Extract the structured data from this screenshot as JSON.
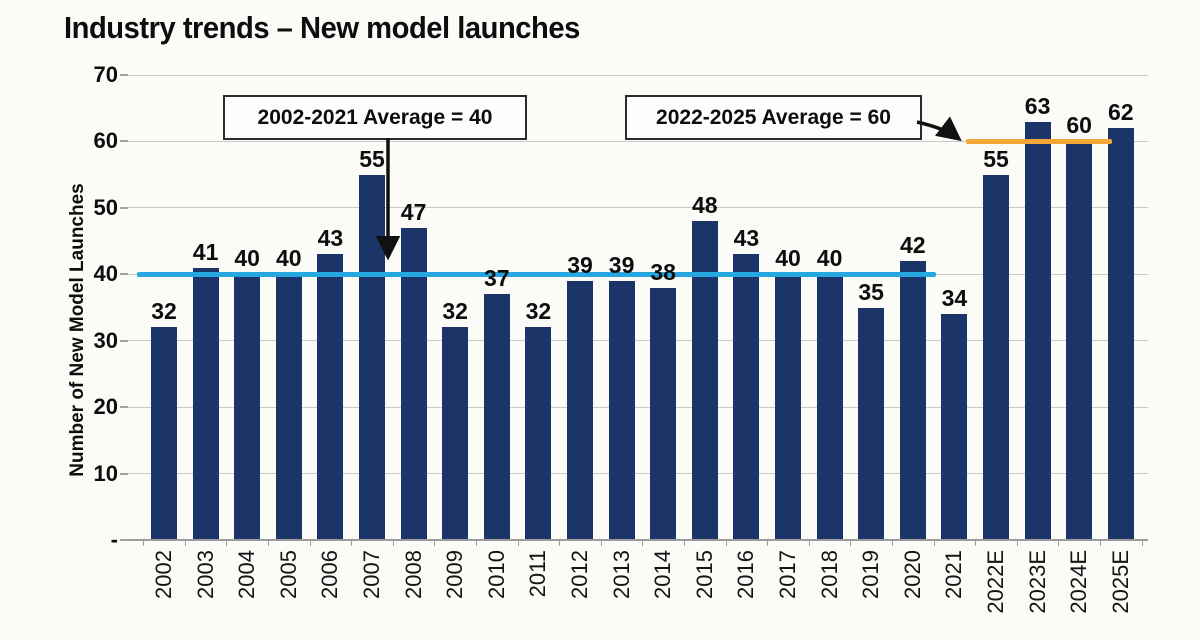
{
  "page": {
    "title": "Industry trends – New model launches"
  },
  "chart_data": {
    "type": "bar",
    "title": "Industry trends – New model launches",
    "xlabel": "",
    "ylabel": "Number of New Model Launches",
    "categories": [
      "2002",
      "2003",
      "2004",
      "2005",
      "2006",
      "2007",
      "2008",
      "2009",
      "2010",
      "2011",
      "2012",
      "2013",
      "2014",
      "2015",
      "2016",
      "2017",
      "2018",
      "2019",
      "2020",
      "2021",
      "2022E",
      "2023E",
      "2024E",
      "2025E"
    ],
    "values": [
      32,
      41,
      40,
      40,
      43,
      55,
      47,
      32,
      37,
      32,
      39,
      39,
      38,
      48,
      43,
      40,
      40,
      35,
      42,
      34,
      55,
      63,
      60,
      62
    ],
    "ylim": [
      0,
      70
    ],
    "ytick_step": 10,
    "ytick_labels": [
      "-",
      "10",
      "20",
      "30",
      "40",
      "50",
      "60",
      "70"
    ],
    "grid": true,
    "legend": "none",
    "bar_color": "#1c3568",
    "annotations": [
      {
        "label": "2002-2021 Average = 40",
        "line_value": 40,
        "line_color": "#27a7df",
        "span_categories": [
          "2002",
          "2021"
        ]
      },
      {
        "label": "2022-2025 Average = 60",
        "line_value": 60,
        "line_color": "#f4a637",
        "span_categories": [
          "2022E",
          "2025E"
        ]
      }
    ]
  },
  "colors": {
    "background": "#fbfbf8",
    "bar": "#1c3568",
    "average_line_2002_2021": "#27a7df",
    "average_line_2022_2025": "#f4a637",
    "gridline": "#c9c9c9",
    "axis_line": "#9c9c9c",
    "text": "#0d0d0d"
  }
}
